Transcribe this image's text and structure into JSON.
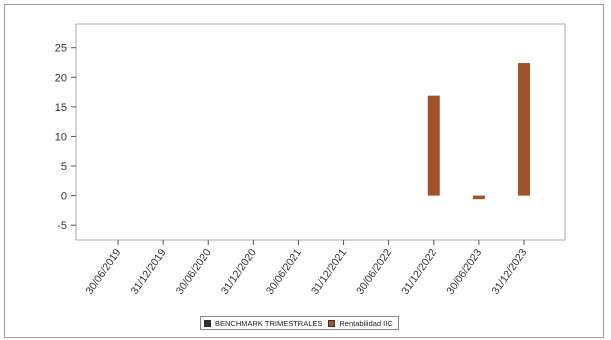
{
  "chart_data": {
    "type": "bar",
    "categories": [
      "30/06/2019",
      "31/12/2019",
      "30/06/2020",
      "31/12/2020",
      "30/06/2021",
      "31/12/2021",
      "30/06/2022",
      "31/12/2022",
      "30/06/2023",
      "31/12/2023"
    ],
    "series": [
      {
        "name": "BENCHMARK TRIMESTRALES",
        "color": "#3b2a33",
        "values": [
          null,
          null,
          null,
          null,
          null,
          null,
          null,
          null,
          null,
          null
        ]
      },
      {
        "name": "Rentabilidad IIC",
        "color": "#a0522d",
        "values": [
          null,
          null,
          null,
          null,
          null,
          null,
          null,
          16.9,
          -0.6,
          22.4
        ]
      }
    ],
    "yticks": [
      -5,
      0,
      5,
      10,
      15,
      20,
      25
    ],
    "ylim": [
      -7.5,
      29
    ],
    "grid": false,
    "legend_position": "bottom"
  }
}
